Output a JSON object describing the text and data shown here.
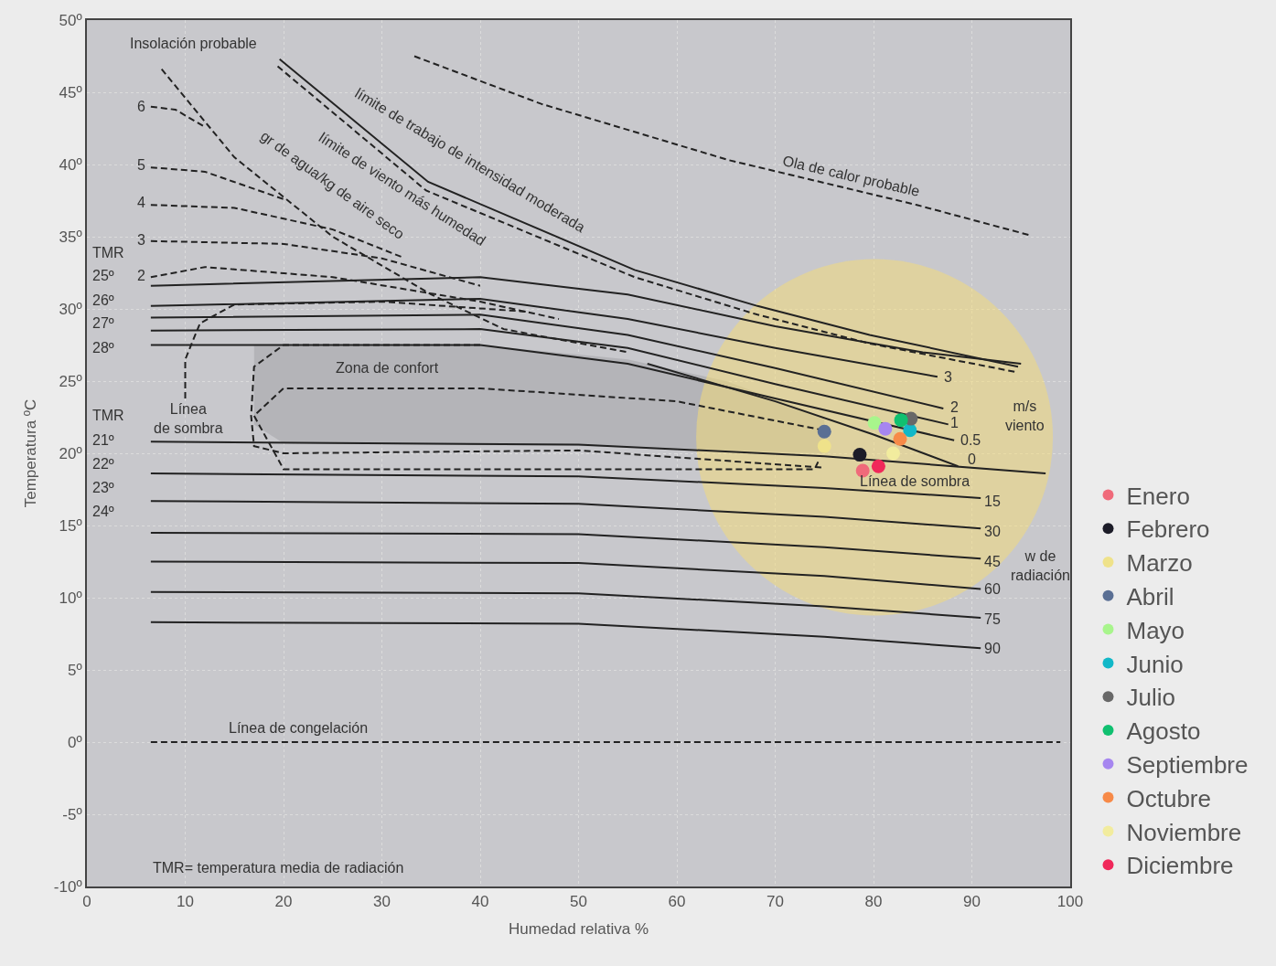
{
  "chart_data": {
    "type": "scatter",
    "xlabel": "Humedad relativa %",
    "ylabel": "Temperatura ºC",
    "xlim": [
      0,
      100
    ],
    "xticks": [
      0,
      10,
      20,
      30,
      40,
      50,
      60,
      70,
      80,
      90,
      100
    ],
    "ylim": [
      -10,
      50
    ],
    "yticks": [
      {
        "value": -10,
        "label": "-10º"
      },
      {
        "value": -5,
        "label": "-5º"
      },
      {
        "value": 0,
        "label": "0º"
      },
      {
        "value": 5,
        "label": "5º"
      },
      {
        "value": 10,
        "label": "10º"
      },
      {
        "value": 15,
        "label": "15º"
      },
      {
        "value": 20,
        "label": "20º"
      },
      {
        "value": 25,
        "label": "25º"
      },
      {
        "value": 30,
        "label": "30º"
      },
      {
        "value": 35,
        "label": "35º"
      },
      {
        "value": 40,
        "label": "40º"
      },
      {
        "value": 45,
        "label": "45º"
      },
      {
        "value": 50,
        "label": "50º"
      }
    ],
    "grid": true,
    "legend": "right",
    "series": [
      {
        "type": "area",
        "color": "#b4b4b8",
        "x": [
          17,
          40,
          55,
          65,
          75,
          75,
          50,
          20,
          17
        ],
        "values": [
          27.5,
          27.5,
          26.5,
          25,
          22.5,
          20,
          20.5,
          20.7,
          22
        ]
      },
      {
        "type": "bubble",
        "color": "#f3dc78",
        "x": [
          80.1
        ],
        "values": [
          21.1
        ],
        "sizes": [
          1
        ]
      },
      {
        "type": "line",
        "line_style": "solid",
        "color": "#222222",
        "x": [
          6.5,
          40,
          55,
          70,
          85,
          95
        ],
        "values": [
          31.6,
          32.2,
          31.0,
          28.8,
          27.0,
          26.2
        ]
      },
      {
        "type": "line",
        "line_style": "solid",
        "color": "#222222",
        "x": [
          6.5,
          40,
          55,
          70,
          86.5
        ],
        "values": [
          30.2,
          30.7,
          29.3,
          27.3,
          25.3
        ]
      },
      {
        "type": "line",
        "line_style": "solid",
        "color": "#222222",
        "x": [
          6.5,
          40,
          55,
          70,
          87.1
        ],
        "values": [
          29.4,
          29.6,
          28.2,
          25.9,
          23.1
        ]
      },
      {
        "type": "line",
        "line_style": "solid",
        "color": "#222222",
        "x": [
          6.5,
          40,
          55,
          70,
          87.6
        ],
        "values": [
          28.5,
          28.6,
          27.3,
          24.8,
          22.0
        ]
      },
      {
        "type": "line",
        "line_style": "solid",
        "color": "#222222",
        "x": [
          6.5,
          40,
          55,
          70,
          88.2
        ],
        "values": [
          27.5,
          27.5,
          26.2,
          23.8,
          20.9
        ]
      },
      {
        "type": "line",
        "line_style": "solid",
        "color": "#222222",
        "x": [
          57,
          70,
          80,
          88.6
        ],
        "values": [
          26.2,
          23.6,
          21.3,
          19.1
        ]
      },
      {
        "type": "line",
        "line_style": "solid",
        "color": "#222222",
        "x": [
          6.5,
          50,
          75,
          97.5
        ],
        "values": [
          20.8,
          20.6,
          19.8,
          18.6
        ]
      },
      {
        "type": "line",
        "line_style": "solid",
        "color": "#222222",
        "x": [
          6.5,
          50,
          75,
          90.9
        ],
        "values": [
          18.6,
          18.4,
          17.6,
          16.9
        ]
      },
      {
        "type": "line",
        "line_style": "solid",
        "color": "#222222",
        "x": [
          6.5,
          50,
          75,
          90.9
        ],
        "values": [
          16.7,
          16.5,
          15.6,
          14.8
        ]
      },
      {
        "type": "line",
        "line_style": "solid",
        "color": "#222222",
        "x": [
          6.5,
          50,
          75,
          90.9
        ],
        "values": [
          14.5,
          14.4,
          13.5,
          12.7
        ]
      },
      {
        "type": "line",
        "line_style": "solid",
        "color": "#222222",
        "x": [
          6.5,
          50,
          75,
          90.9
        ],
        "values": [
          12.5,
          12.4,
          11.5,
          10.6
        ]
      },
      {
        "type": "line",
        "line_style": "solid",
        "color": "#222222",
        "x": [
          6.5,
          50,
          75,
          90.9
        ],
        "values": [
          10.4,
          10.3,
          9.4,
          8.6
        ]
      },
      {
        "type": "line",
        "line_style": "solid",
        "color": "#222222",
        "x": [
          6.5,
          50,
          75,
          90.9
        ],
        "values": [
          8.3,
          8.2,
          7.3,
          6.5
        ]
      },
      {
        "type": "line",
        "line_style": "solid",
        "color": "#222222",
        "x": [
          19.6,
          34.7,
          55.7,
          68.2,
          79.6,
          94.7
        ],
        "values": [
          47.3,
          38.8,
          32.7,
          30.2,
          28.2,
          26.0
        ]
      },
      {
        "type": "line",
        "line_style": "dashed",
        "color": "#222222",
        "x": [
          19.4,
          34.5,
          55.7,
          68.2,
          79.6,
          94.7
        ],
        "values": [
          46.8,
          38.2,
          32.2,
          29.6,
          27.6,
          25.6
        ]
      },
      {
        "type": "line",
        "line_style": "dashed",
        "color": "#222222",
        "x": [
          33.3,
          46.2,
          65.3,
          84.4,
          95.9
        ],
        "values": [
          47.5,
          44.2,
          40.3,
          37.2,
          35.1
        ]
      },
      {
        "type": "line",
        "line_style": "dashed",
        "color": "#222222",
        "x": [
          7.6,
          15,
          25,
          35,
          42.4,
          55
        ],
        "values": [
          46.6,
          40.5,
          35,
          31,
          28.6,
          27
        ]
      },
      {
        "type": "line",
        "line_style": "dashed",
        "color": "#222222",
        "x": [
          6.5,
          9,
          12
        ],
        "values": [
          44.0,
          43.8,
          42.6
        ]
      },
      {
        "type": "line",
        "line_style": "dashed",
        "color": "#222222",
        "x": [
          6.5,
          12,
          20
        ],
        "values": [
          39.8,
          39.5,
          37.6
        ]
      },
      {
        "type": "line",
        "line_style": "dashed",
        "color": "#222222",
        "x": [
          6.5,
          15,
          25,
          32
        ],
        "values": [
          37.2,
          37.0,
          35.5,
          33.6
        ]
      },
      {
        "type": "line",
        "line_style": "dashed",
        "color": "#222222",
        "x": [
          6.5,
          20,
          30,
          40
        ],
        "values": [
          34.7,
          34.5,
          33.5,
          31.6
        ]
      },
      {
        "type": "line",
        "line_style": "dashed",
        "color": "#222222",
        "x": [
          6.5,
          12,
          25,
          40,
          48
        ],
        "values": [
          32.2,
          32.9,
          32.2,
          30.5,
          29.3
        ]
      },
      {
        "type": "line",
        "line_style": "dashed",
        "color": "#222222",
        "x": [
          10,
          10,
          11.5,
          15,
          30,
          45
        ],
        "values": [
          23.8,
          26.5,
          29,
          30.3,
          30.5,
          29.8
        ]
      },
      {
        "type": "line",
        "line_style": "dashed",
        "color": "#222222",
        "x": [
          40,
          20,
          17,
          16.7,
          17,
          20,
          50,
          75
        ],
        "values": [
          27.5,
          27.5,
          26,
          22.6,
          20.5,
          20.0,
          20.2,
          19.0
        ]
      },
      {
        "type": "line",
        "line_style": "dashed",
        "color": "#222222",
        "x": [
          74.9,
          60,
          40,
          20,
          17,
          20,
          50,
          74,
          74.5
        ],
        "values": [
          21.6,
          23.6,
          24.5,
          24.5,
          22.6,
          18.9,
          18.9,
          18.9,
          19.6
        ]
      },
      {
        "type": "line",
        "line_style": "dashed",
        "color": "#222222",
        "x": [
          6.5,
          99
        ],
        "values": [
          0,
          0
        ]
      },
      {
        "marker": "circle",
        "name": "Enero",
        "color": "#f06a7a",
        "x": [
          78.9
        ],
        "values": [
          18.8
        ]
      },
      {
        "marker": "circle",
        "name": "Febrero",
        "color": "#1c1c28",
        "x": [
          78.6
        ],
        "values": [
          19.9
        ]
      },
      {
        "marker": "circle",
        "name": "Marzo",
        "color": "#efe28a",
        "x": [
          75.0
        ],
        "values": [
          20.5
        ]
      },
      {
        "marker": "circle",
        "name": "Abril",
        "color": "#5a6f94",
        "x": [
          75.0
        ],
        "values": [
          21.5
        ]
      },
      {
        "marker": "circle",
        "name": "Mayo",
        "color": "#a8f58c",
        "x": [
          80.1
        ],
        "values": [
          22.1
        ]
      },
      {
        "marker": "circle",
        "name": "Junio",
        "color": "#12b8c8",
        "x": [
          83.7
        ],
        "values": [
          21.6
        ]
      },
      {
        "marker": "circle",
        "name": "Julio",
        "color": "#686868",
        "x": [
          83.8
        ],
        "values": [
          22.4
        ]
      },
      {
        "marker": "circle",
        "name": "Agosto",
        "color": "#10c070",
        "x": [
          82.8
        ],
        "values": [
          22.3
        ]
      },
      {
        "marker": "circle",
        "name": "Septiembre",
        "color": "#a686f0",
        "x": [
          81.2
        ],
        "values": [
          21.7
        ]
      },
      {
        "marker": "circle",
        "name": "Octubre",
        "color": "#f78a48",
        "x": [
          82.7
        ],
        "values": [
          21.0
        ]
      },
      {
        "marker": "circle",
        "name": "Noviembre",
        "color": "#f2ec9e",
        "x": [
          82.0
        ],
        "values": [
          20.0
        ]
      },
      {
        "marker": "circle",
        "name": "Diciembre",
        "color": "#f0285a",
        "x": [
          80.5
        ],
        "values": [
          19.1
        ]
      }
    ],
    "annotations": [
      "Insolación probable",
      "límite de trabajo de intensidad moderada",
      "límite de viento más humedad",
      "gr de agua/kg de aire seco",
      "Ola de calor probable",
      "Zona de confort",
      "Línea\nde sombra",
      "TMR",
      "25º",
      "26º",
      "27º",
      "28º",
      "TMR",
      "21º",
      "22º",
      "23º",
      "24º",
      "6",
      "5",
      "4",
      "3",
      "2",
      "3",
      "2",
      "1",
      "0.5",
      "0",
      "m/s\nviento",
      "Línea de sombra",
      "15",
      "30",
      "45",
      "60",
      "75",
      "90",
      "w de\nradiación",
      "Línea de congelación",
      "TMR= temperatura media de radiación"
    ]
  }
}
